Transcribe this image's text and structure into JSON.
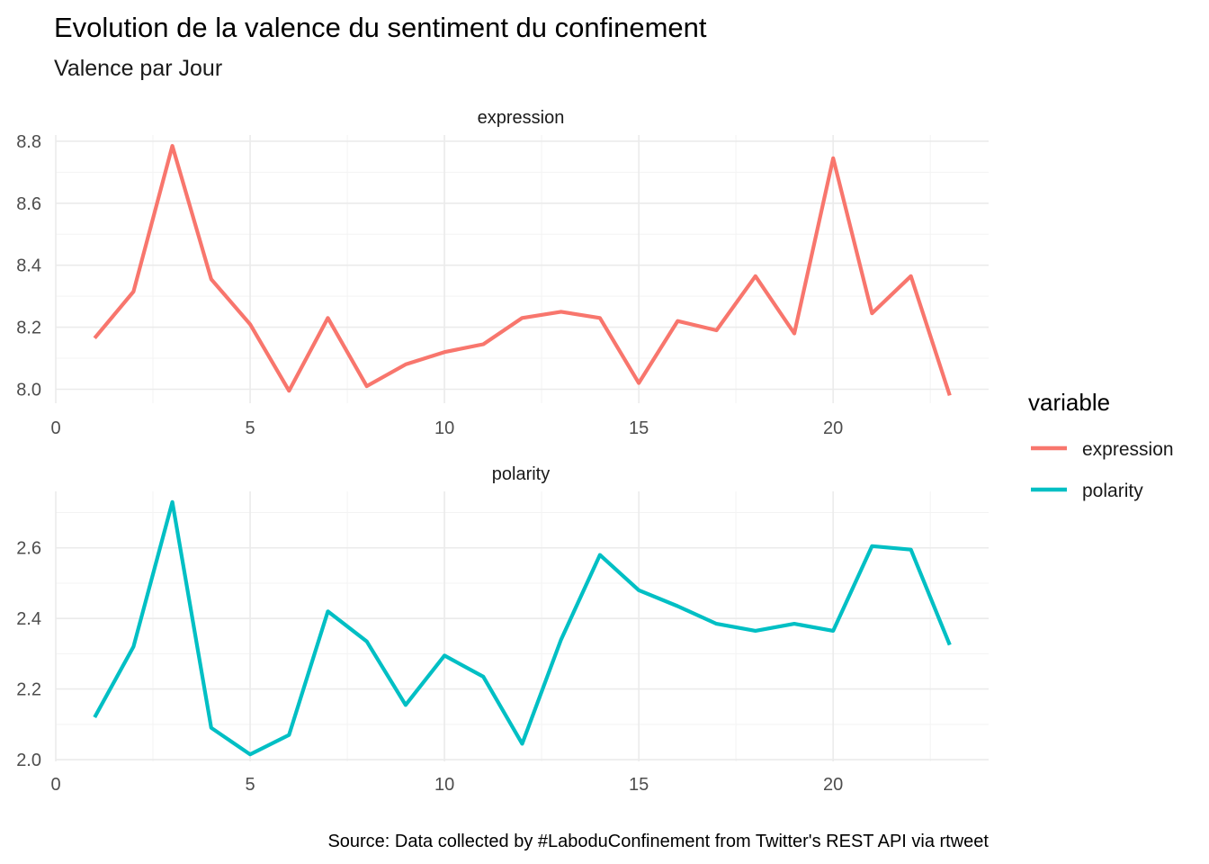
{
  "chart_data": {
    "type": "line",
    "title": "Evolution de la valence du sentiment du confinement",
    "subtitle": "Valence par Jour",
    "caption": "Source: Data collected by #LaboduConfinement from Twitter's REST API via rtweet",
    "legend": {
      "title": "variable",
      "placement": "right",
      "entries": [
        {
          "label": "expression",
          "color": "#F8766D"
        },
        {
          "label": "polarity",
          "color": "#00BFC4"
        }
      ]
    },
    "grid": true,
    "facets": [
      {
        "label": "expression",
        "color": "#F8766D",
        "x": [
          1,
          2,
          3,
          4,
          5,
          6,
          7,
          8,
          9,
          10,
          11,
          12,
          13,
          14,
          15,
          16,
          17,
          18,
          19,
          20,
          21,
          22,
          23
        ],
        "y": [
          8.165,
          8.315,
          8.785,
          8.355,
          8.21,
          7.995,
          8.23,
          8.01,
          8.08,
          8.12,
          8.145,
          8.23,
          8.25,
          8.23,
          8.02,
          8.22,
          8.19,
          8.365,
          8.18,
          8.745,
          8.245,
          8.365,
          7.98
        ],
        "xlim": [
          0,
          24
        ],
        "ylim": [
          7.955,
          8.82
        ],
        "x_ticks": [
          0,
          5,
          10,
          15,
          20
        ],
        "x_tick_labels": [
          "0",
          "5",
          "10",
          "15",
          "20"
        ],
        "y_ticks": [
          8.0,
          8.2,
          8.4,
          8.6,
          8.8
        ],
        "y_tick_labels": [
          "8.0",
          "8.2",
          "8.4",
          "8.6",
          "8.8"
        ]
      },
      {
        "label": "polarity",
        "color": "#00BFC4",
        "x": [
          1,
          2,
          3,
          4,
          5,
          6,
          7,
          8,
          9,
          10,
          11,
          12,
          13,
          14,
          15,
          16,
          17,
          18,
          19,
          20,
          21,
          22,
          23
        ],
        "y": [
          2.12,
          2.32,
          2.73,
          2.09,
          2.015,
          2.07,
          2.42,
          2.335,
          2.155,
          2.295,
          2.235,
          2.045,
          2.34,
          2.58,
          2.48,
          2.435,
          2.385,
          2.365,
          2.385,
          2.365,
          2.605,
          2.595,
          2.325
        ],
        "xlim": [
          0,
          24
        ],
        "ylim": [
          1.995,
          2.76
        ],
        "x_ticks": [
          0,
          5,
          10,
          15,
          20
        ],
        "x_tick_labels": [
          "0",
          "5",
          "10",
          "15",
          "20"
        ],
        "y_ticks": [
          2.0,
          2.2,
          2.4,
          2.6
        ],
        "y_tick_labels": [
          "2.0",
          "2.2",
          "2.4",
          "2.6"
        ]
      }
    ]
  }
}
